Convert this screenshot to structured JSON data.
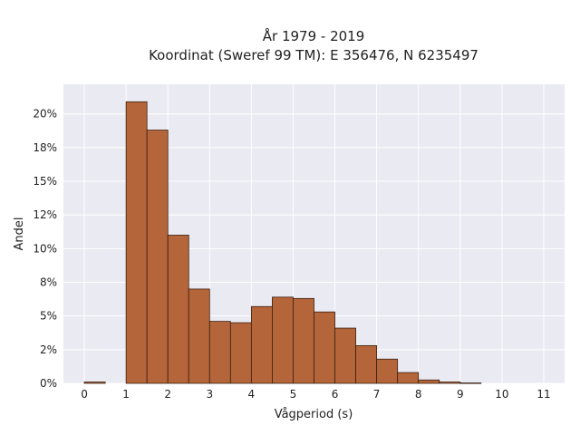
{
  "chart_data": {
    "type": "bar",
    "title_lines": [
      "År 1979 - 2019",
      "Koordinat (Sweref 99 TM): E 356476, N 6235497"
    ],
    "xlabel": "Vågperiod (s)",
    "ylabel": "Andel",
    "xlim": [
      -0.5,
      11.5
    ],
    "ylim": [
      0,
      0.222
    ],
    "x_ticks": [
      0,
      1,
      2,
      3,
      4,
      5,
      6,
      7,
      8,
      9,
      10,
      11
    ],
    "y_ticks": [
      0,
      0.025,
      0.05,
      0.075,
      0.1,
      0.125,
      0.15,
      0.175,
      0.2
    ],
    "y_tick_labels": [
      "0%",
      "2%",
      "5%",
      "8%",
      "10%",
      "12%",
      "15%",
      "18%",
      "20%"
    ],
    "bin_width": 0.5,
    "bins": [
      {
        "x0": 0.0,
        "value": 0.001
      },
      {
        "x0": 0.5,
        "value": 0.0
      },
      {
        "x0": 1.0,
        "value": 0.209
      },
      {
        "x0": 1.5,
        "value": 0.188
      },
      {
        "x0": 2.0,
        "value": 0.11
      },
      {
        "x0": 2.5,
        "value": 0.07
      },
      {
        "x0": 3.0,
        "value": 0.046
      },
      {
        "x0": 3.5,
        "value": 0.045
      },
      {
        "x0": 4.0,
        "value": 0.057
      },
      {
        "x0": 4.5,
        "value": 0.064
      },
      {
        "x0": 5.0,
        "value": 0.063
      },
      {
        "x0": 5.5,
        "value": 0.053
      },
      {
        "x0": 6.0,
        "value": 0.041
      },
      {
        "x0": 6.5,
        "value": 0.028
      },
      {
        "x0": 7.0,
        "value": 0.018
      },
      {
        "x0": 7.5,
        "value": 0.008
      },
      {
        "x0": 8.0,
        "value": 0.0025
      },
      {
        "x0": 8.5,
        "value": 0.001
      },
      {
        "x0": 9.0,
        "value": 0.0003
      }
    ],
    "grid": true,
    "bar_color": "#b5653a",
    "bar_edge_color": "#3a2010",
    "plot_background": "#eaeaf2",
    "grid_color": "#ffffff"
  }
}
